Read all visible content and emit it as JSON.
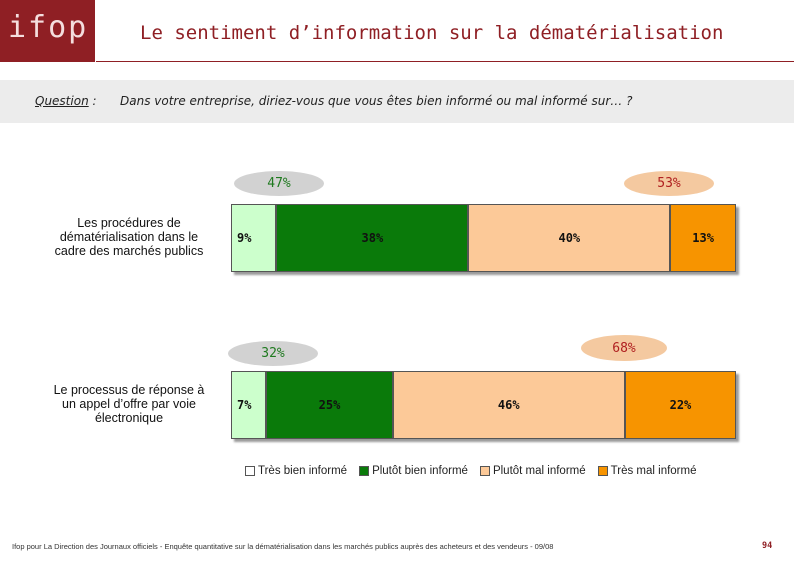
{
  "logo": {
    "text": "ifop"
  },
  "title": "Le sentiment d’information sur la dématérialisation",
  "question": {
    "label": "Question",
    "sep": " :",
    "text": "Dans votre entreprise, diriez-vous que vous êtes bien informé ou mal informé sur… ?"
  },
  "colors": {
    "brand": "#8f1f24",
    "tres_bien": "#ccffcc",
    "plutot_bien": "#0a7a0a",
    "plutot_mal": "#fcc998",
    "tres_mal": "#f79400"
  },
  "chart_data": {
    "type": "bar",
    "orientation": "horizontal-stacked-100",
    "categories": [
      "Les procédures de dématérialisation dans le cadre des marchés publics",
      "Le processus de réponse à un appel d’offre par voie électronique"
    ],
    "series": [
      {
        "name": "Très bien informé",
        "values": [
          9,
          7
        ]
      },
      {
        "name": "Plutôt bien informé",
        "values": [
          38,
          25
        ]
      },
      {
        "name": "Plutôt mal informé",
        "values": [
          40,
          46
        ]
      },
      {
        "name": "Très mal informé",
        "values": [
          13,
          22
        ]
      }
    ],
    "totals": {
      "bien_informe": [
        "47%",
        "32%"
      ],
      "mal_informe": [
        "53%",
        "68%"
      ]
    },
    "unit": "%"
  },
  "rows": [
    {
      "label_lines": [
        "Les procédures de",
        "dématérialisation dans le",
        "cadre des marchés publics"
      ],
      "total_pos": "47%",
      "total_neg": "53%",
      "seg_labels": [
        "9%",
        "38%",
        "40%",
        "13%"
      ]
    },
    {
      "label_lines": [
        "Le processus de réponse à",
        "un appel d’offre par voie",
        "électronique"
      ],
      "total_pos": "32%",
      "total_neg": "68%",
      "seg_labels": [
        "7%",
        "25%",
        "46%",
        "22%"
      ]
    }
  ],
  "legend": [
    "Très bien informé",
    "Plutôt bien informé",
    "Plutôt mal informé",
    "Très mal informé"
  ],
  "footer": "Ifop pour La Direction des Journaux officiels - Enquête quantitative sur la dématérialisation dans les marchés publics auprès des acheteurs et des vendeurs - 09/08",
  "page_number": "94"
}
